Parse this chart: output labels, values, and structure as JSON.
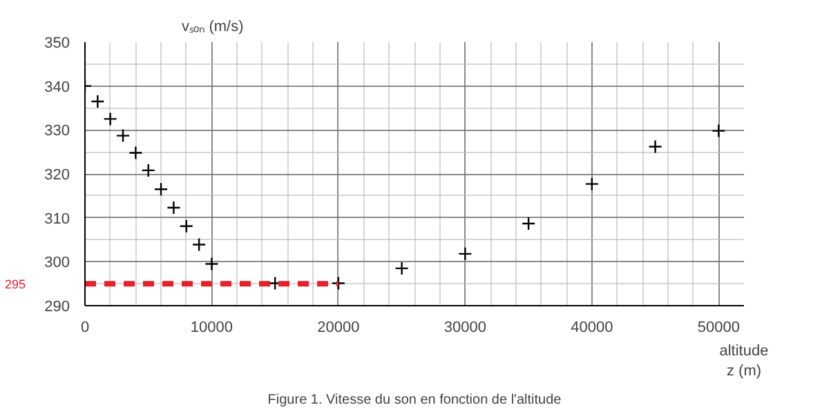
{
  "chart_data": {
    "type": "scatter",
    "title": "Figure 1. Vitesse du son en fonction de l'altitude",
    "xlabel": "altitude\nz (m)",
    "ylabel": "vₛₒₙ (m/s)",
    "x": [
      0,
      1000,
      2000,
      3000,
      4000,
      5000,
      6000,
      7000,
      8000,
      9000,
      10000,
      15000,
      20000,
      25000,
      30000,
      35000,
      40000,
      45000,
      50000
    ],
    "series": [
      {
        "color": "#000000",
        "values": [
          340,
          336.5,
          332.5,
          328.7,
          324.8,
          320.8,
          316.5,
          312.3,
          308.1,
          303.9,
          299.5,
          295.1,
          295.1,
          298.5,
          301.8,
          308.7,
          317.7,
          326.2,
          329.8
        ]
      },
      {
        "type": "line",
        "name": "295",
        "color": "#e8202a",
        "line_style": "dashed",
        "marker": "none",
        "x": [
          0,
          20000
        ],
        "values": [
          295,
          295
        ]
      }
    ],
    "xlim": [
      0,
      52000
    ],
    "ylim": [
      290,
      350
    ],
    "xticks": [
      0,
      10000,
      20000,
      30000,
      40000,
      50000
    ],
    "yticks": [
      290,
      300,
      310,
      320,
      330,
      340,
      350
    ],
    "grid": true,
    "marker": "cross",
    "legend": false
  }
}
